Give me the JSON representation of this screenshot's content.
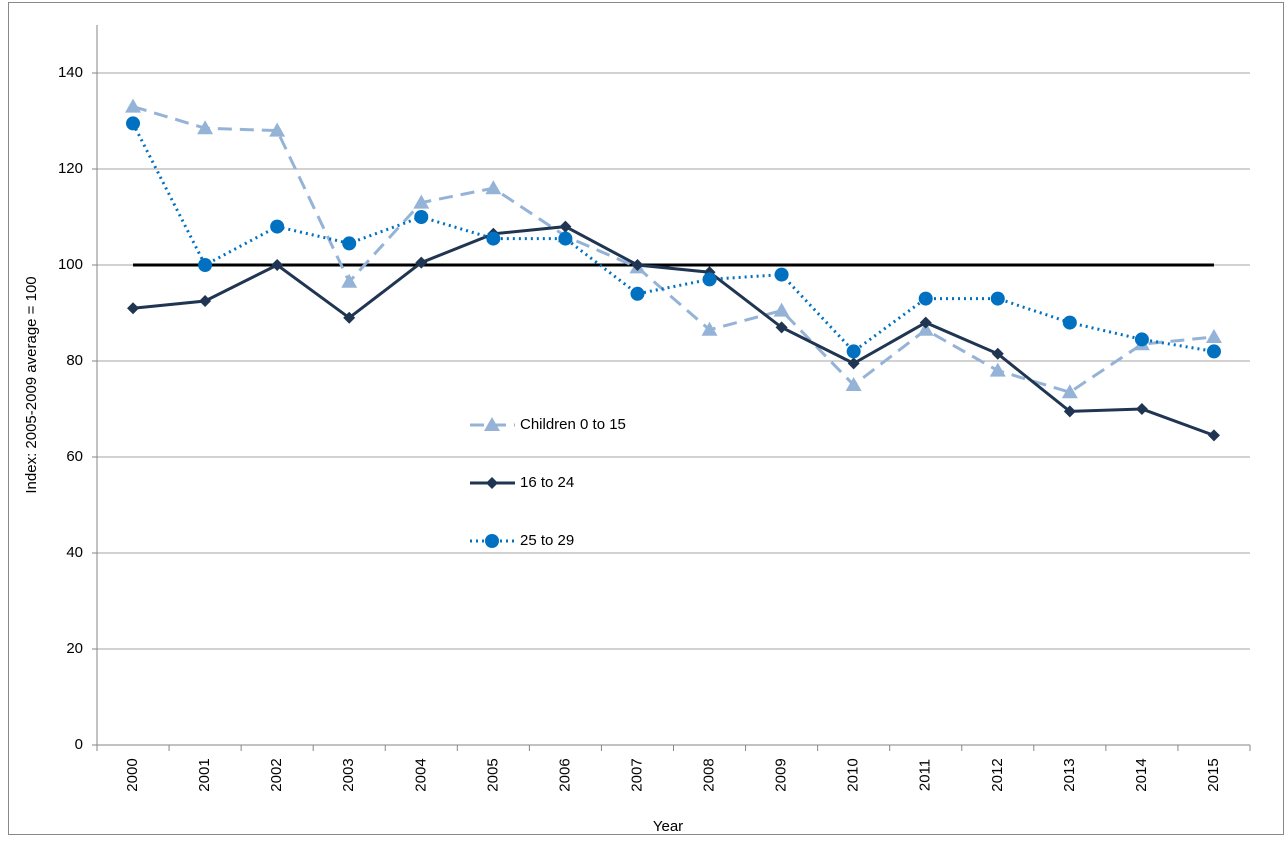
{
  "chart_data": {
    "type": "line",
    "x_label": "Year",
    "y_label": "Index: 2005-2009 average = 100",
    "categories": [
      "2000",
      "2001",
      "2002",
      "2003",
      "2004",
      "2005",
      "2006",
      "2007",
      "2008",
      "2009",
      "2010",
      "2011",
      "2012",
      "2013",
      "2014",
      "2015"
    ],
    "series": [
      {
        "name": "Children 0 to 15",
        "color": "#95b3d7",
        "dash": "dashed",
        "marker": "triangle",
        "values": [
          133,
          128.5,
          128,
          96.5,
          113,
          116,
          106,
          99.5,
          86.5,
          90.5,
          75,
          86.5,
          78,
          73.5,
          83.5,
          85
        ]
      },
      {
        "name": "16 to 24",
        "color": "#1f3552",
        "dash": "solid",
        "marker": "diamond",
        "values": [
          91,
          92.5,
          100,
          89,
          100.5,
          106.5,
          108,
          100,
          98.5,
          87,
          79.5,
          88,
          81.5,
          69.5,
          70,
          64.5
        ]
      },
      {
        "name": "25 to 29",
        "color": "#0070c0",
        "dash": "dotted",
        "marker": "circle",
        "values": [
          129.5,
          100,
          108,
          104.5,
          110,
          105.5,
          105.5,
          94,
          97,
          98,
          82,
          93,
          93,
          88,
          84.5,
          82
        ]
      }
    ],
    "reference_line": {
      "value": 100,
      "color": "#000000"
    },
    "ylim": [
      0,
      150
    ],
    "yticks": [
      0,
      20,
      40,
      60,
      80,
      100,
      120,
      140
    ],
    "grid": true
  }
}
